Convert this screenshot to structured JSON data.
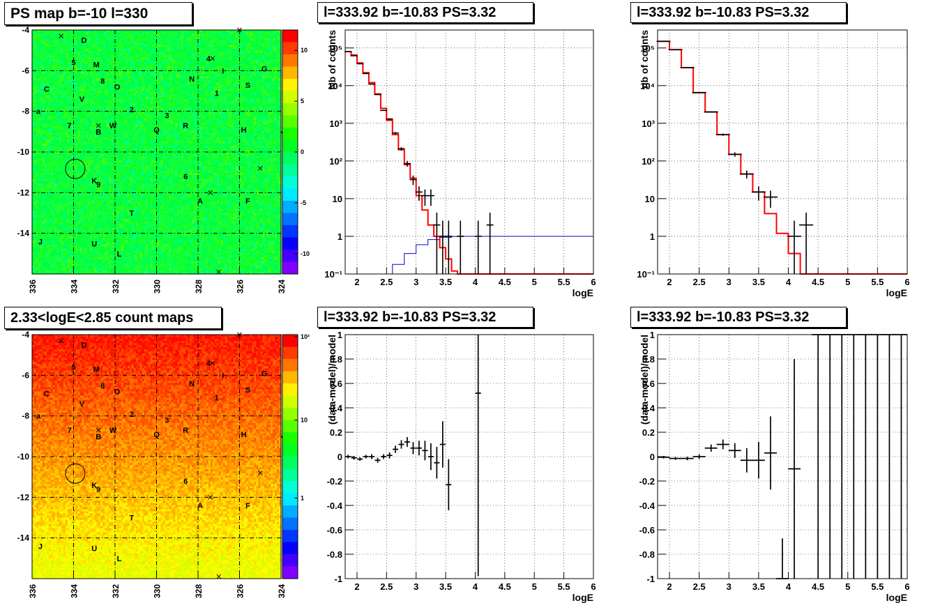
{
  "panels": {
    "tl_title": "PS map b=-10 l=330",
    "bl_title": "2.33<logE<2.85 count maps",
    "tm_title": "l=333.92 b=-10.83 PS=3.32",
    "tr_title": "l=333.92 b=-10.83 PS=3.32",
    "bm_title": "l=333.92 b=-10.83 PS=3.32",
    "br_title": "l=333.92 b=-10.83 PS=3.32"
  },
  "colors": {
    "model": "#ff0000",
    "blue_curve": "#0000cc",
    "data": "#000000",
    "map_base": "#00ff44"
  },
  "chart_data": [
    {
      "type": "heatmap",
      "title": "PS map b=-10 l=330",
      "xticks": [
        "336",
        "334",
        "332",
        "330",
        "328",
        "326",
        "324"
      ],
      "yticks": [
        "-4",
        "-6",
        "-8",
        "-10",
        "-12",
        "-14"
      ],
      "xlim": [
        336,
        324
      ],
      "ylim": [
        -16,
        -4
      ],
      "colorbar_ticks": [
        "10",
        "5",
        "0",
        "-5",
        "-10"
      ],
      "colorbar_range": [
        -12,
        12
      ],
      "source_labels": [
        {
          "t": "D",
          "l": 333.5,
          "b": -4.5
        },
        {
          "t": "5",
          "l": 334.0,
          "b": -5.6
        },
        {
          "t": "M",
          "l": 332.9,
          "b": -5.7
        },
        {
          "t": "4",
          "l": 327.5,
          "b": -5.4
        },
        {
          "t": "I",
          "l": 326.8,
          "b": -6.0
        },
        {
          "t": "G",
          "l": 324.8,
          "b": -5.9
        },
        {
          "t": "C",
          "l": 335.3,
          "b": -6.9
        },
        {
          "t": "8",
          "l": 332.6,
          "b": -6.5
        },
        {
          "t": "O",
          "l": 331.9,
          "b": -6.8
        },
        {
          "t": "N",
          "l": 328.3,
          "b": -6.4
        },
        {
          "t": "S",
          "l": 325.6,
          "b": -6.7
        },
        {
          "t": "1",
          "l": 327.1,
          "b": -7.1
        },
        {
          "t": "V",
          "l": 333.6,
          "b": -7.4
        },
        {
          "t": "a",
          "l": 335.7,
          "b": -8.0
        },
        {
          "t": "2",
          "l": 331.2,
          "b": -7.9
        },
        {
          "t": "3",
          "l": 329.5,
          "b": -8.2
        },
        {
          "t": "7",
          "l": 334.2,
          "b": -8.7
        },
        {
          "t": "W",
          "l": 332.1,
          "b": -8.7
        },
        {
          "t": "B",
          "l": 332.8,
          "b": -9.0
        },
        {
          "t": "Q",
          "l": 330.0,
          "b": -8.9
        },
        {
          "t": "R",
          "l": 328.6,
          "b": -8.7
        },
        {
          "t": "H",
          "l": 325.8,
          "b": -8.9
        },
        {
          "t": "Y",
          "l": 323.9,
          "b": -9.1
        },
        {
          "t": "K",
          "l": 333.0,
          "b": -11.4
        },
        {
          "t": "9",
          "l": 332.8,
          "b": -11.6
        },
        {
          "t": "6",
          "l": 328.6,
          "b": -11.2
        },
        {
          "t": "A",
          "l": 327.9,
          "b": -12.4
        },
        {
          "t": "F",
          "l": 325.6,
          "b": -12.4
        },
        {
          "t": "T",
          "l": 331.2,
          "b": -13.0
        },
        {
          "t": "J",
          "l": 335.6,
          "b": -14.4
        },
        {
          "t": "U",
          "l": 333.0,
          "b": -14.5
        },
        {
          "t": "L",
          "l": 331.8,
          "b": -15.0
        }
      ],
      "crosses": [
        {
          "l": 334.6,
          "b": -4.3
        },
        {
          "l": 326.0,
          "b": -4.0
        },
        {
          "l": 327.3,
          "b": -5.4
        },
        {
          "l": 332.8,
          "b": -8.7
        },
        {
          "l": 325.0,
          "b": -10.8
        },
        {
          "l": 327.4,
          "b": -12.0
        },
        {
          "l": 327.0,
          "b": -15.9
        }
      ],
      "circle": {
        "l": 333.92,
        "b": -10.83
      }
    },
    {
      "type": "heatmap",
      "title": "2.33<logE<2.85 count maps",
      "xticks": [
        "336",
        "334",
        "332",
        "330",
        "328",
        "326",
        "324"
      ],
      "yticks": [
        "-4",
        "-6",
        "-8",
        "-10",
        "-12",
        "-14"
      ],
      "xlim": [
        336,
        324
      ],
      "ylim": [
        -16,
        -4
      ],
      "colorbar_ticks": [
        "10²",
        "10",
        "1"
      ],
      "colorbar_scale": "log",
      "gradient": "red at b=-4 fading to yellow-green at b=-16"
    },
    {
      "type": "line",
      "title": "l=333.92 b=-10.83 PS=3.32",
      "xlabel": "logE",
      "ylabel": "Nb of counts",
      "xlim": [
        1.8,
        6.0
      ],
      "ylim": [
        0.1,
        300000
      ],
      "yscale": "log",
      "xticks": [
        "2",
        "2.5",
        "3",
        "3.5",
        "4",
        "4.5",
        "5",
        "5.5",
        "6"
      ],
      "yticks": [
        "10⁻¹",
        "1",
        "10",
        "10²",
        "10³",
        "10⁴",
        "10⁵"
      ],
      "grid": true,
      "bin_edges": [
        1.8,
        1.9,
        2.0,
        2.1,
        2.2,
        2.3,
        2.4,
        2.5,
        2.6,
        2.7,
        2.8,
        2.9,
        3.0,
        3.1,
        3.2,
        3.3,
        3.4,
        3.5,
        3.6,
        3.7,
        3.8,
        3.9,
        4.0,
        4.1,
        4.2,
        4.3,
        4.4,
        4.5,
        4.6,
        6.0
      ],
      "series": [
        {
          "role": "model",
          "values": [
            80000,
            65000,
            40000,
            22000,
            12000,
            6000,
            2500,
            1200,
            500,
            200,
            80,
            35,
            12,
            5,
            2,
            1,
            0.5,
            0.25,
            0.12,
            0.1,
            0.1,
            0.1,
            0.1,
            0.1,
            0.1,
            0.1,
            0.1,
            0.1,
            0.1
          ]
        },
        {
          "role": "data",
          "x": [
            1.85,
            1.95,
            2.05,
            2.15,
            2.25,
            2.35,
            2.45,
            2.55,
            2.65,
            2.75,
            2.85,
            2.95,
            3.05,
            3.15,
            3.25,
            3.35,
            3.45,
            3.55,
            3.75,
            4.05,
            4.25
          ],
          "y": [
            80000,
            62000,
            38000,
            21000,
            11000,
            5800,
            2200,
            1300,
            550,
            210,
            85,
            32,
            15,
            12,
            12,
            2,
            1,
            1,
            1,
            1,
            2
          ]
        },
        {
          "role": "blue",
          "x": [
            2.4,
            2.6,
            2.8,
            3.0,
            3.2,
            3.4,
            3.6,
            3.8,
            4.0,
            6.0
          ],
          "y": [
            0.1,
            0.18,
            0.35,
            0.6,
            0.82,
            0.94,
            0.99,
            1,
            1,
            1
          ]
        }
      ]
    },
    {
      "type": "line",
      "title": "l=333.92 b=-10.83 PS=3.32",
      "xlabel": "logE",
      "ylabel": "nb of counts",
      "xlim": [
        1.8,
        6.0
      ],
      "ylim": [
        0.1,
        300000
      ],
      "yscale": "log",
      "xticks": [
        "2",
        "2.5",
        "3",
        "3.5",
        "4",
        "4.5",
        "5",
        "5.5",
        "6"
      ],
      "yticks": [
        "10⁻¹",
        "1",
        "10",
        "10²",
        "10³",
        "10⁴",
        "10⁵"
      ],
      "grid": true,
      "bin_edges": [
        1.8,
        2.0,
        2.2,
        2.4,
        2.6,
        2.8,
        3.0,
        3.2,
        3.4,
        3.6,
        3.8,
        4.0,
        4.2,
        4.4,
        4.6,
        6.0
      ],
      "series": [
        {
          "role": "model",
          "values": [
            150000,
            90000,
            30000,
            6500,
            2000,
            500,
            150,
            45,
            15,
            4,
            1.2,
            0.35,
            0.1,
            0.1,
            0.1
          ]
        },
        {
          "role": "data",
          "x": [
            1.9,
            2.1,
            2.3,
            2.5,
            2.7,
            2.9,
            3.1,
            3.3,
            3.5,
            3.7,
            4.1,
            4.3
          ],
          "y": [
            150000,
            90000,
            30000,
            6500,
            2000,
            500,
            150,
            45,
            15,
            11,
            1,
            2
          ]
        }
      ]
    },
    {
      "type": "scatter",
      "title": "l=333.92 b=-10.83 PS=3.32",
      "xlabel": "logE",
      "ylabel": "(data-model)/model",
      "xlim": [
        1.8,
        6.0
      ],
      "ylim": [
        -1,
        1
      ],
      "xticks": [
        "2",
        "2.5",
        "3",
        "3.5",
        "4",
        "4.5",
        "5",
        "5.5",
        "6"
      ],
      "yticks": [
        "-1",
        "-0.8",
        "-0.6",
        "-0.4",
        "-0.2",
        "0",
        "0.2",
        "0.4",
        "0.6",
        "0.8",
        "1"
      ],
      "grid": true,
      "points": [
        {
          "x": 1.85,
          "y": 0.0,
          "e": 0.015
        },
        {
          "x": 1.95,
          "y": -0.01,
          "e": 0.015
        },
        {
          "x": 2.05,
          "y": -0.02,
          "e": 0.015
        },
        {
          "x": 2.15,
          "y": 0.0,
          "e": 0.015
        },
        {
          "x": 2.25,
          "y": 0.0,
          "e": 0.02
        },
        {
          "x": 2.35,
          "y": -0.03,
          "e": 0.02
        },
        {
          "x": 2.45,
          "y": 0.0,
          "e": 0.02
        },
        {
          "x": 2.55,
          "y": 0.01,
          "e": 0.025
        },
        {
          "x": 2.65,
          "y": 0.06,
          "e": 0.03
        },
        {
          "x": 2.75,
          "y": 0.1,
          "e": 0.035
        },
        {
          "x": 2.85,
          "y": 0.12,
          "e": 0.04
        },
        {
          "x": 2.95,
          "y": 0.07,
          "e": 0.05
        },
        {
          "x": 3.05,
          "y": 0.07,
          "e": 0.06
        },
        {
          "x": 3.15,
          "y": 0.05,
          "e": 0.08
        },
        {
          "x": 3.25,
          "y": 0.0,
          "e": 0.11
        },
        {
          "x": 3.35,
          "y": -0.05,
          "e": 0.13
        },
        {
          "x": 3.45,
          "y": 0.1,
          "e": 0.19
        },
        {
          "x": 3.55,
          "y": -0.23,
          "e": 0.21
        },
        {
          "x": 4.05,
          "y": 0.52,
          "e": 1.5
        }
      ]
    },
    {
      "type": "scatter",
      "title": "l=333.92 b=-10.83 PS=3.32",
      "xlabel": "logE",
      "ylabel": "(data-model)/model",
      "xlim": [
        1.8,
        6.0
      ],
      "ylim": [
        -1,
        1
      ],
      "xticks": [
        "2",
        "2.5",
        "3",
        "3.5",
        "4",
        "4.5",
        "5",
        "5.5",
        "6"
      ],
      "yticks": [
        "-1",
        "-0.8",
        "-0.6",
        "-0.4",
        "-0.2",
        "0",
        "0.2",
        "0.4",
        "0.6",
        "0.8",
        "1"
      ],
      "grid": true,
      "points": [
        {
          "x": 1.9,
          "y": -0.005,
          "e": 0.01
        },
        {
          "x": 2.1,
          "y": -0.015,
          "e": 0.012
        },
        {
          "x": 2.3,
          "y": -0.015,
          "e": 0.015
        },
        {
          "x": 2.5,
          "y": 0.0,
          "e": 0.02
        },
        {
          "x": 2.7,
          "y": 0.07,
          "e": 0.03
        },
        {
          "x": 2.9,
          "y": 0.1,
          "e": 0.04
        },
        {
          "x": 3.1,
          "y": 0.05,
          "e": 0.06
        },
        {
          "x": 3.3,
          "y": -0.03,
          "e": 0.1
        },
        {
          "x": 3.5,
          "y": -0.03,
          "e": 0.15
        },
        {
          "x": 3.7,
          "y": 0.03,
          "e": 0.3
        },
        {
          "x": 3.9,
          "y": -1.0,
          "e": 0.33
        },
        {
          "x": 4.1,
          "y": -0.1,
          "e": 0.9
        },
        {
          "x": 4.5,
          "y": 1.0,
          "e": 2.0
        },
        {
          "x": 4.7,
          "y": 1.0,
          "e": 2.0
        },
        {
          "x": 4.9,
          "y": 1.0,
          "e": 2.0
        },
        {
          "x": 5.1,
          "y": 1.0,
          "e": 2.0
        },
        {
          "x": 5.3,
          "y": 1.0,
          "e": 2.0
        },
        {
          "x": 5.5,
          "y": 1.0,
          "e": 2.0
        },
        {
          "x": 5.7,
          "y": 1.0,
          "e": 2.0
        },
        {
          "x": 5.9,
          "y": 1.0,
          "e": 2.0
        }
      ]
    }
  ]
}
